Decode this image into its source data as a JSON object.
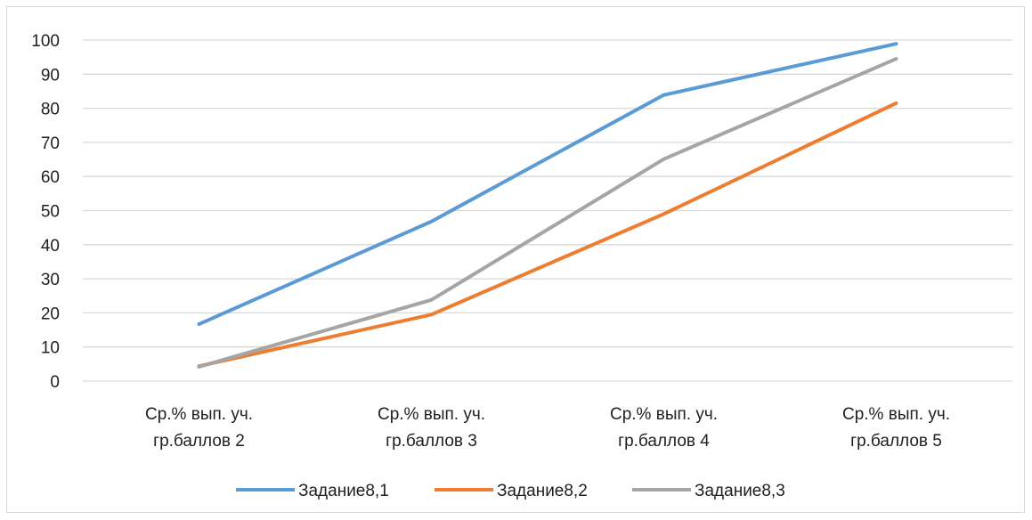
{
  "chart_data": {
    "type": "line",
    "categories": [
      [
        "Ср.% вып. уч.",
        "гр.баллов 2"
      ],
      [
        "Ср.% вып. уч.",
        "гр.баллов 3"
      ],
      [
        "Ср.% вып. уч.",
        "гр.баллов 4"
      ],
      [
        "Ср.% вып. уч.",
        "гр.баллов 5"
      ]
    ],
    "series": [
      {
        "name": "Задание8,1",
        "color": "#5b9bd5",
        "values": [
          16.7,
          46.8,
          83.9,
          98.9
        ]
      },
      {
        "name": "Задание8,2",
        "color": "#ed7d31",
        "values": [
          4.4,
          19.5,
          49.0,
          81.5
        ]
      },
      {
        "name": "Задание8,3",
        "color": "#a5a5a5",
        "values": [
          4.2,
          23.8,
          65.1,
          94.5
        ]
      }
    ],
    "ylim": [
      0,
      100
    ],
    "yticks": [
      "0",
      "10",
      "20",
      "30",
      "40",
      "50",
      "60",
      "70",
      "80",
      "90",
      "100"
    ],
    "grid": true,
    "legend": "bottom",
    "title": "",
    "xlabel": "",
    "ylabel": ""
  }
}
